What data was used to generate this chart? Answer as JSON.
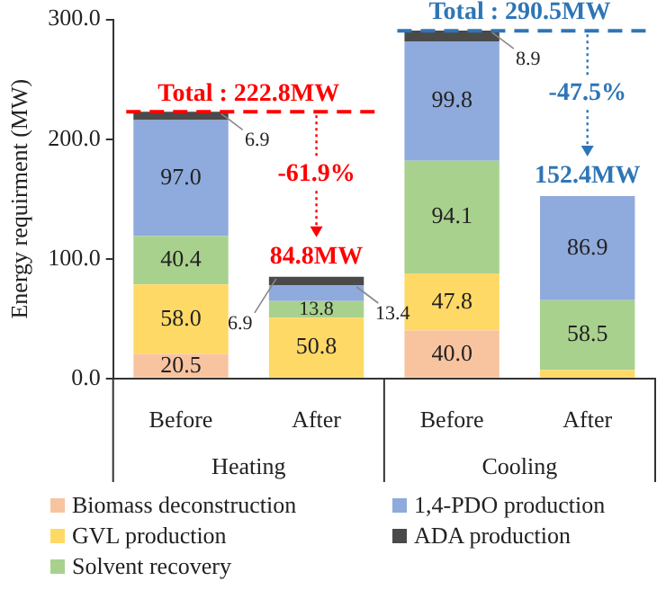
{
  "chart_data": {
    "type": "bar",
    "stacked": true,
    "ylabel": "Energy requirment (MW)",
    "categories": [
      "Before",
      "After",
      "Before",
      "After"
    ],
    "series": [
      {
        "name": "Biomass deconstruction",
        "color": "#f8c4a0",
        "values": [
          20.5,
          null,
          40.0,
          null
        ],
        "value_labels": [
          "20.5",
          null,
          "40.0",
          null
        ]
      },
      {
        "name": "GVL production",
        "color": "#ffd966",
        "values": [
          58.0,
          50.8,
          47.8,
          7.0
        ],
        "value_labels": [
          "58.0",
          "50.8",
          "47.8",
          null
        ]
      },
      {
        "name": "Solvent recovery",
        "color": "#a9d18e",
        "values": [
          40.4,
          13.8,
          94.1,
          58.5
        ],
        "value_labels": [
          "40.4",
          "13.8",
          "94.1",
          "58.5"
        ]
      },
      {
        "name": "1,4-PDO production",
        "color": "#8faadc",
        "values": [
          97.0,
          13.4,
          99.8,
          86.9
        ],
        "value_labels": [
          "97.0",
          "13.4",
          "99.8",
          "86.9"
        ]
      },
      {
        "name": "ADA production",
        "color": "#4a4a4a",
        "values": [
          6.9,
          6.9,
          8.9,
          null
        ],
        "value_labels": [
          "6.9",
          "6.9",
          "8.9",
          null
        ]
      }
    ],
    "totals": [
      "Total : 222.8MW",
      "84.8MW",
      "Total : 290.5MW",
      "152.4MW"
    ],
    "ref_lines": [
      {
        "axis": "y",
        "value": 222.8,
        "color": "#ff0000",
        "line_style": "dashed"
      },
      {
        "axis": "y",
        "value": 290.5,
        "color": "#2e75b6",
        "line_style": "dashed"
      }
    ],
    "annotations": [
      "-61.9%",
      "-47.5%",
      "Heating",
      "Cooling"
    ],
    "ylim": [
      0,
      300
    ],
    "yticks": [
      {
        "value": 0,
        "label": "0.0"
      },
      {
        "value": 100,
        "label": "100.0"
      },
      {
        "value": 200,
        "label": "200.0"
      },
      {
        "value": 300,
        "label": "300.0"
      }
    ],
    "grid": false,
    "legend": "bottom"
  }
}
